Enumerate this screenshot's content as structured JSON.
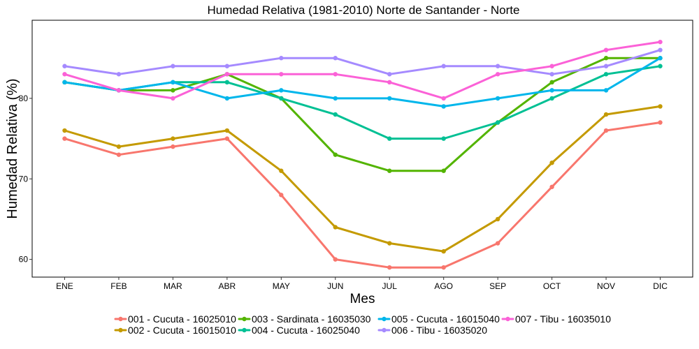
{
  "chart_data": {
    "type": "line",
    "title": "Humedad Relativa (1981-2010)  Norte de Santander - Norte",
    "xlabel": "Mes",
    "ylabel": "Humedad Relativa  (%)",
    "categories": [
      "ENE",
      "FEB",
      "MAR",
      "ABR",
      "MAY",
      "JUN",
      "JUL",
      "AGO",
      "SEP",
      "OCT",
      "NOV",
      "DIC"
    ],
    "ylim": [
      57.8,
      89.7
    ],
    "yticks": [
      60,
      70,
      80
    ],
    "grid": false,
    "legend_position": "bottom",
    "series": [
      {
        "name": "001 - Cucuta - 16025010",
        "color": "#F8766D",
        "values": [
          75,
          73,
          74,
          75,
          68,
          60,
          59,
          59,
          62,
          69,
          76,
          77
        ]
      },
      {
        "name": "002 - Cucuta - 16015010",
        "color": "#C49A00",
        "values": [
          76,
          74,
          75,
          76,
          71,
          64,
          62,
          61,
          65,
          72,
          78,
          79
        ]
      },
      {
        "name": "003 - Sardinata - 16035030",
        "color": "#53B400",
        "values": [
          82,
          81,
          81,
          83,
          80,
          73,
          71,
          71,
          77,
          82,
          85,
          85
        ]
      },
      {
        "name": "004 - Cucuta - 16025040",
        "color": "#00C094",
        "values": [
          82,
          81,
          82,
          82,
          80,
          78,
          75,
          75,
          77,
          80,
          83,
          84
        ]
      },
      {
        "name": "005 - Cucuta - 16015040",
        "color": "#00B6EB",
        "values": [
          82,
          81,
          82,
          80,
          81,
          80,
          80,
          79,
          80,
          81,
          81,
          85
        ]
      },
      {
        "name": "006 - Tibu - 16035020",
        "color": "#A58AFF",
        "values": [
          84,
          83,
          84,
          84,
          85,
          85,
          83,
          84,
          84,
          83,
          84,
          86
        ]
      },
      {
        "name": "007 - Tibu - 16035010",
        "color": "#FB61D7",
        "values": [
          83,
          81,
          80,
          83,
          83,
          83,
          82,
          80,
          83,
          84,
          86,
          87
        ]
      }
    ]
  }
}
